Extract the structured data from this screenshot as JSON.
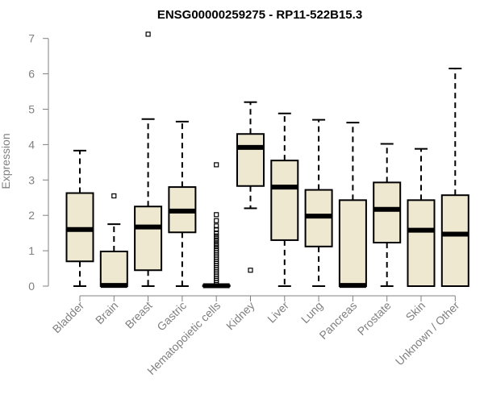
{
  "chart_data": {
    "type": "boxplot",
    "title": "ENSG00000259275 - RP11-522B15.3",
    "xlabel": "",
    "ylabel": "Expression",
    "ylim": [
      0,
      7.1
    ],
    "yticks": [
      0,
      1,
      2,
      3,
      4,
      5,
      6,
      7
    ],
    "grid": false,
    "box_fill": "#efe8d0",
    "box_stroke": "#000000",
    "categories": [
      "Bladder",
      "Brain",
      "Breast",
      "Gastric",
      "Hematopoietic cells",
      "Kidney",
      "Liver",
      "Lung",
      "Pancreas",
      "Prostate",
      "Skin",
      "Unknown / Other"
    ],
    "boxes": [
      {
        "min": 0.0,
        "q1": 0.7,
        "median": 1.6,
        "q3": 2.63,
        "max": 3.83,
        "outliers": []
      },
      {
        "min": 0.0,
        "q1": 0.0,
        "median": 0.02,
        "q3": 0.98,
        "max": 1.75,
        "outliers": [
          2.55
        ]
      },
      {
        "min": 0.0,
        "q1": 0.45,
        "median": 1.67,
        "q3": 2.25,
        "max": 4.72,
        "outliers": [
          7.12
        ]
      },
      {
        "min": 0.0,
        "q1": 1.52,
        "median": 2.12,
        "q3": 2.8,
        "max": 4.65,
        "outliers": []
      },
      {
        "min": 0.0,
        "q1": 0.0,
        "median": 0.01,
        "q3": 0.02,
        "max": 0.05,
        "outliers": [
          3.43,
          2.02,
          1.85,
          1.7,
          1.6,
          1.5,
          1.42,
          1.35,
          1.28,
          1.2,
          1.13,
          1.06,
          1.0,
          0.94,
          0.88,
          0.82,
          0.76,
          0.7,
          0.64,
          0.58,
          0.52,
          0.46,
          0.4,
          0.34,
          0.28,
          0.22,
          0.16,
          0.1
        ]
      },
      {
        "min": 2.2,
        "q1": 2.83,
        "median": 3.92,
        "q3": 4.3,
        "max": 5.2,
        "outliers": [
          0.45
        ]
      },
      {
        "min": 0.0,
        "q1": 1.3,
        "median": 2.8,
        "q3": 3.55,
        "max": 4.88,
        "outliers": []
      },
      {
        "min": 0.0,
        "q1": 1.12,
        "median": 1.98,
        "q3": 2.72,
        "max": 4.7,
        "outliers": []
      },
      {
        "min": 0.0,
        "q1": 0.0,
        "median": 0.02,
        "q3": 2.43,
        "max": 4.62,
        "outliers": []
      },
      {
        "min": 0.0,
        "q1": 1.23,
        "median": 2.17,
        "q3": 2.93,
        "max": 4.02,
        "outliers": []
      },
      {
        "min": 0.0,
        "q1": 0.0,
        "median": 1.58,
        "q3": 2.43,
        "max": 3.88,
        "outliers": []
      },
      {
        "min": 0.0,
        "q1": 0.0,
        "median": 1.47,
        "q3": 2.57,
        "max": 6.15,
        "outliers": []
      }
    ]
  }
}
